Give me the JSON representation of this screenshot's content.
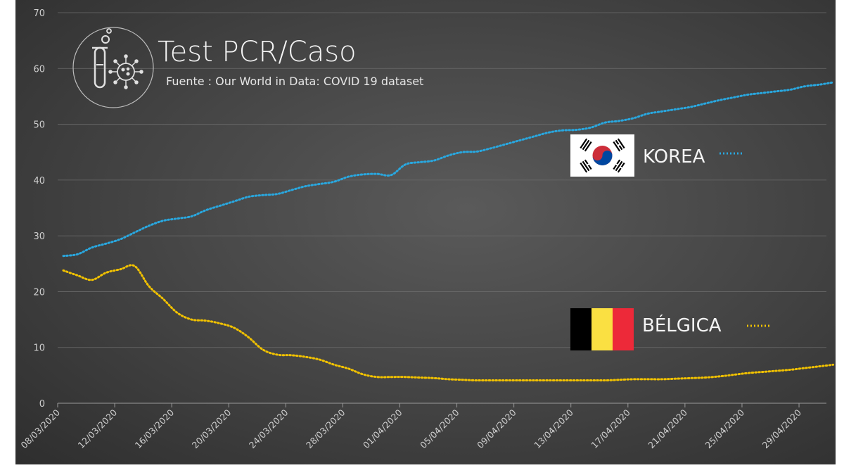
{
  "chart_data": {
    "type": "line",
    "title": "Test PCR/Caso",
    "subtitle": "Fuente : Our World in Data: COVID 19 dataset",
    "xlabel": "",
    "ylabel": "",
    "ylim": [
      0,
      70
    ],
    "yticks": [
      "0",
      "10",
      "20",
      "30",
      "40",
      "50",
      "60",
      "70"
    ],
    "xticks": [
      "08/03/2020",
      "12/03/2020",
      "16/03/2020",
      "20/03/2020",
      "24/03/2020",
      "28/03/2020",
      "01/04/2020",
      "05/04/2020",
      "09/04/2020",
      "13/04/2020",
      "17/04/2020",
      "21/04/2020",
      "25/04/2020",
      "29/04/2020"
    ],
    "grid": true,
    "series": [
      {
        "name": "KOREA",
        "color": "#29a8e0",
        "flag": "south-korea-flag-icon",
        "x": [
          "08/03/2020",
          "09/03/2020",
          "10/03/2020",
          "11/03/2020",
          "12/03/2020",
          "13/03/2020",
          "14/03/2020",
          "15/03/2020",
          "16/03/2020",
          "17/03/2020",
          "18/03/2020",
          "19/03/2020",
          "20/03/2020",
          "21/03/2020",
          "22/03/2020",
          "23/03/2020",
          "24/03/2020",
          "25/03/2020",
          "26/03/2020",
          "27/03/2020",
          "28/03/2020",
          "29/03/2020",
          "30/03/2020",
          "31/03/2020",
          "01/04/2020",
          "02/04/2020",
          "03/04/2020",
          "04/04/2020",
          "05/04/2020",
          "06/04/2020",
          "07/04/2020",
          "08/04/2020",
          "09/04/2020",
          "10/04/2020",
          "11/04/2020",
          "12/04/2020",
          "13/04/2020",
          "14/04/2020",
          "15/04/2020",
          "16/04/2020",
          "17/04/2020",
          "18/04/2020",
          "19/04/2020",
          "20/04/2020",
          "21/04/2020",
          "22/04/2020",
          "23/04/2020",
          "24/04/2020",
          "25/04/2020",
          "26/04/2020",
          "27/04/2020",
          "28/04/2020",
          "29/04/2020",
          "30/04/2020",
          "01/05/2020"
        ],
        "values": [
          26.4,
          26.7,
          27.9,
          28.6,
          29.4,
          30.6,
          31.8,
          32.7,
          33.1,
          33.5,
          34.6,
          35.4,
          36.2,
          37.0,
          37.3,
          37.5,
          38.2,
          38.9,
          39.3,
          39.7,
          40.6,
          41.0,
          41.1,
          40.9,
          42.8,
          43.2,
          43.5,
          44.4,
          45.0,
          45.1,
          45.7,
          46.4,
          47.1,
          47.8,
          48.5,
          48.9,
          49.0,
          49.4,
          50.3,
          50.6,
          51.1,
          51.9,
          52.3,
          52.7,
          53.1,
          53.7,
          54.3,
          54.8,
          55.3,
          55.6,
          55.9,
          56.2,
          56.8,
          57.1,
          57.5
        ]
      },
      {
        "name": "BÉLGICA",
        "color": "#f2c200",
        "flag": "belgium-flag-icon",
        "x": [
          "08/03/2020",
          "09/03/2020",
          "10/03/2020",
          "11/03/2020",
          "12/03/2020",
          "13/03/2020",
          "14/03/2020",
          "15/03/2020",
          "16/03/2020",
          "17/03/2020",
          "18/03/2020",
          "19/03/2020",
          "20/03/2020",
          "21/03/2020",
          "22/03/2020",
          "23/03/2020",
          "24/03/2020",
          "25/03/2020",
          "26/03/2020",
          "27/03/2020",
          "28/03/2020",
          "29/03/2020",
          "30/03/2020",
          "31/03/2020",
          "01/04/2020",
          "02/04/2020",
          "03/04/2020",
          "04/04/2020",
          "05/04/2020",
          "06/04/2020",
          "07/04/2020",
          "08/04/2020",
          "09/04/2020",
          "10/04/2020",
          "11/04/2020",
          "12/04/2020",
          "13/04/2020",
          "14/04/2020",
          "15/04/2020",
          "16/04/2020",
          "17/04/2020",
          "18/04/2020",
          "19/04/2020",
          "20/04/2020",
          "21/04/2020",
          "22/04/2020",
          "23/04/2020",
          "24/04/2020",
          "25/04/2020",
          "26/04/2020",
          "27/04/2020",
          "28/04/2020",
          "29/04/2020",
          "30/04/2020",
          "01/05/2020"
        ],
        "values": [
          23.8,
          22.9,
          22.1,
          23.4,
          24.0,
          24.6,
          21.0,
          18.7,
          16.2,
          15.0,
          14.8,
          14.3,
          13.5,
          11.8,
          9.6,
          8.7,
          8.6,
          8.3,
          7.8,
          6.9,
          6.2,
          5.2,
          4.7,
          4.7,
          4.7,
          4.6,
          4.5,
          4.3,
          4.2,
          4.1,
          4.1,
          4.1,
          4.1,
          4.1,
          4.1,
          4.1,
          4.1,
          4.1,
          4.1,
          4.2,
          4.3,
          4.3,
          4.3,
          4.4,
          4.5,
          4.6,
          4.8,
          5.1,
          5.4,
          5.6,
          5.8,
          6.0,
          6.3,
          6.6,
          6.9
        ]
      }
    ]
  }
}
